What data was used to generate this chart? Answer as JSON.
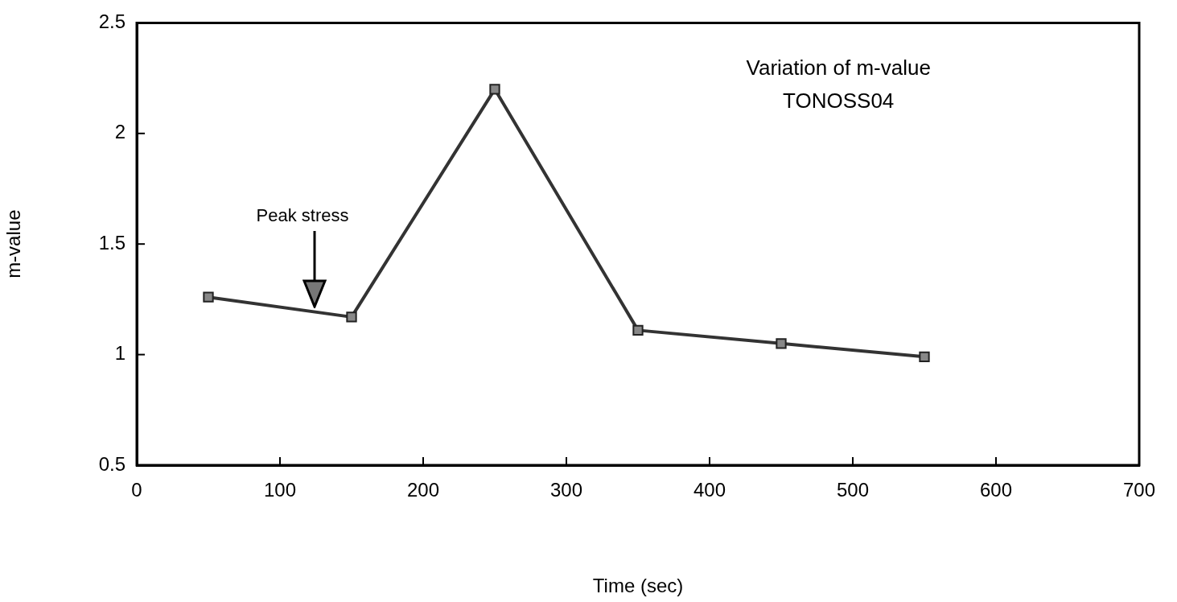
{
  "chart_data": {
    "type": "line",
    "title": "Variation of m-value",
    "subtitle": "TONOSS04",
    "xlabel": "Time (sec)",
    "ylabel": "m-value",
    "x": [
      50,
      150,
      250,
      350,
      450,
      550
    ],
    "series": [
      {
        "color": "#333333",
        "values": [
          1.26,
          1.17,
          2.2,
          1.11,
          1.05,
          0.99
        ]
      }
    ],
    "xlim": [
      0,
      700
    ],
    "xticks": [
      0,
      100,
      200,
      300,
      400,
      500,
      600,
      700
    ],
    "ylim": [
      0.5,
      2.5
    ],
    "yticks": [
      0.5,
      1,
      1.5,
      2,
      2.5
    ],
    "annotations": [
      "Peak stress"
    ],
    "grid": false,
    "legend": false,
    "marker": "square",
    "line_style": "solid"
  }
}
